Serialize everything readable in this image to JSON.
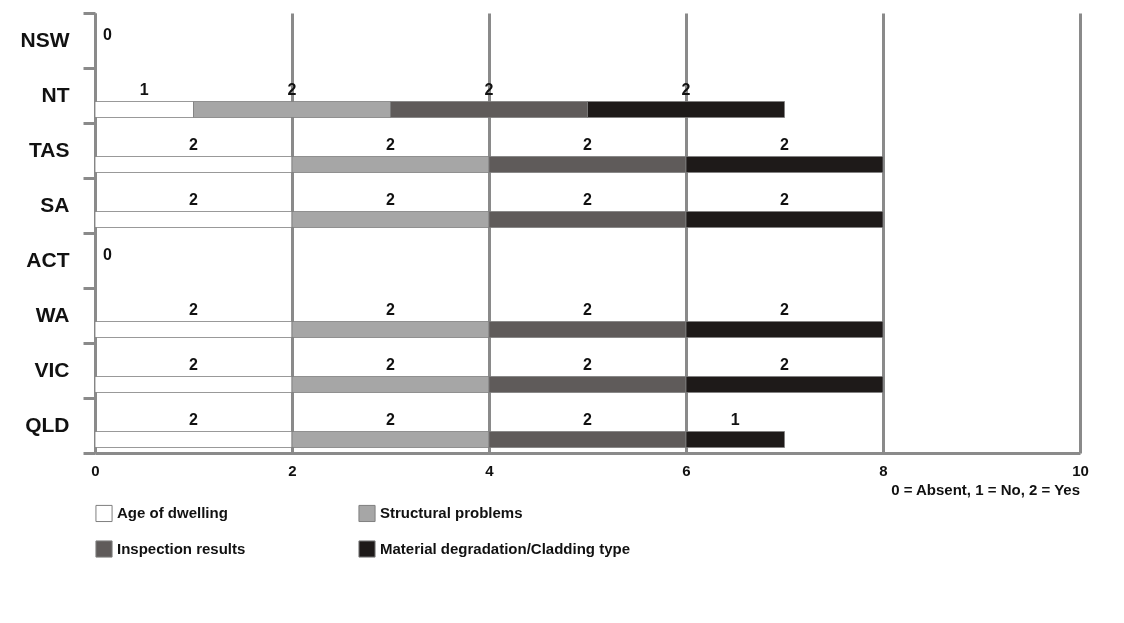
{
  "chart_data": {
    "type": "bar",
    "orientation": "horizontal",
    "stacked": true,
    "categories": [
      "NSW",
      "NT",
      "TAS",
      "SA",
      "ACT",
      "WA",
      "VIC",
      "QLD"
    ],
    "series": [
      {
        "name": "Age of dwelling",
        "color": "#ffffff",
        "values": [
          0,
          1,
          2,
          2,
          0,
          2,
          2,
          2
        ],
        "value_labels": [
          "0",
          "1",
          "2",
          "2",
          "0",
          "2",
          "2",
          "2"
        ]
      },
      {
        "name": "Structural problems",
        "color": "#a6a6a6",
        "values": [
          0,
          2,
          2,
          2,
          0,
          2,
          2,
          2
        ],
        "value_labels": [
          null,
          "2",
          "2",
          "2",
          null,
          "2",
          "2",
          "2"
        ]
      },
      {
        "name": "Inspection results",
        "color": "#5f5b5a",
        "values": [
          0,
          2,
          2,
          2,
          0,
          2,
          2,
          2
        ],
        "value_labels": [
          null,
          "2",
          "2",
          "2",
          null,
          "2",
          "2",
          "2"
        ]
      },
      {
        "name": "Material degradation/Cladding type",
        "color": "#1e1a19",
        "values": [
          0,
          2,
          2,
          2,
          0,
          2,
          2,
          1
        ],
        "value_labels": [
          null,
          "2",
          "2",
          "2",
          null,
          "2",
          "2",
          "1"
        ]
      }
    ],
    "xlim": [
      0,
      10
    ],
    "xticks": [
      0,
      2,
      4,
      6,
      8,
      10
    ],
    "grid": "x",
    "legend": "bottom",
    "annotations": [
      "0 = Absent,  1 = No,  2 = Yes"
    ]
  }
}
